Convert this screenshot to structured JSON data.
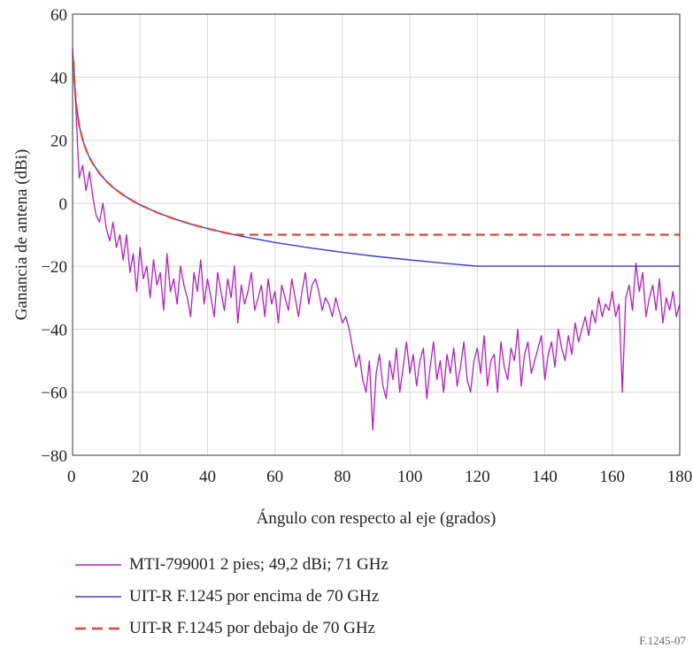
{
  "chart_data": {
    "type": "line",
    "title": "",
    "xlabel": "Ángulo con respecto al eje (grados)",
    "ylabel": "Ganancia de antena (dBi)",
    "xlim": [
      0,
      180
    ],
    "ylim": [
      -80,
      60
    ],
    "xticks": [
      0,
      20,
      40,
      60,
      80,
      100,
      120,
      140,
      160,
      180
    ],
    "yticks": [
      -80,
      -60,
      -40,
      -20,
      0,
      20,
      40,
      60
    ],
    "ytick_labels": [
      "−80",
      "−60",
      "−40",
      "−20",
      "0",
      "20",
      "40",
      "60"
    ],
    "grid": true,
    "legend_position": "bottom",
    "series": [
      {
        "name": "MTI-799001 2 pies; 49,2 dBi; 71 GHz",
        "color": "#b01fbf",
        "style": "solid",
        "x": [
          0,
          0.5,
          1,
          1.5,
          2,
          3,
          4,
          5,
          6,
          7,
          8,
          9,
          10,
          11,
          12,
          13,
          14,
          15,
          16,
          17,
          18,
          19,
          20,
          21,
          22,
          23,
          24,
          25,
          26,
          27,
          28,
          29,
          30,
          31,
          32,
          33,
          34,
          35,
          36,
          37,
          38,
          39,
          40,
          41,
          42,
          43,
          44,
          45,
          46,
          47,
          48,
          49,
          50,
          51,
          52,
          53,
          54,
          55,
          56,
          57,
          58,
          59,
          60,
          61,
          62,
          63,
          64,
          65,
          66,
          67,
          68,
          69,
          70,
          71,
          72,
          73,
          74,
          75,
          76,
          77,
          78,
          79,
          80,
          81,
          82,
          83,
          84,
          85,
          86,
          87,
          88,
          89,
          90,
          91,
          92,
          93,
          94,
          95,
          96,
          97,
          98,
          99,
          100,
          101,
          102,
          103,
          104,
          105,
          106,
          107,
          108,
          109,
          110,
          111,
          112,
          113,
          114,
          115,
          116,
          117,
          118,
          119,
          120,
          121,
          122,
          123,
          124,
          125,
          126,
          127,
          128,
          129,
          130,
          131,
          132,
          133,
          134,
          135,
          136,
          137,
          138,
          139,
          140,
          141,
          142,
          143,
          144,
          145,
          146,
          147,
          148,
          149,
          150,
          151,
          152,
          153,
          154,
          155,
          156,
          157,
          158,
          159,
          160,
          161,
          162,
          163,
          164,
          165,
          166,
          167,
          168,
          169,
          170,
          171,
          172,
          173,
          174,
          175,
          176,
          177,
          178,
          179,
          180
        ],
        "y": [
          49,
          40,
          30,
          18,
          8,
          12,
          4,
          10,
          2,
          -4,
          -6,
          0,
          -8,
          -12,
          -6,
          -14,
          -10,
          -18,
          -10,
          -22,
          -16,
          -28,
          -14,
          -24,
          -20,
          -30,
          -18,
          -26,
          -22,
          -34,
          -16,
          -28,
          -24,
          -32,
          -20,
          -26,
          -30,
          -36,
          -22,
          -28,
          -18,
          -32,
          -24,
          -30,
          -36,
          -22,
          -28,
          -34,
          -24,
          -30,
          -20,
          -38,
          -26,
          -32,
          -28,
          -22,
          -34,
          -30,
          -26,
          -36,
          -24,
          -32,
          -28,
          -38,
          -26,
          -30,
          -34,
          -24,
          -30,
          -36,
          -28,
          -22,
          -32,
          -26,
          -24,
          -28,
          -34,
          -30,
          -32,
          -36,
          -30,
          -34,
          -38,
          -36,
          -40,
          -46,
          -52,
          -48,
          -56,
          -60,
          -50,
          -72,
          -54,
          -48,
          -58,
          -62,
          -50,
          -56,
          -46,
          -60,
          -52,
          -44,
          -54,
          -48,
          -58,
          -50,
          -46,
          -62,
          -52,
          -44,
          -56,
          -50,
          -60,
          -48,
          -54,
          -46,
          -58,
          -52,
          -44,
          -56,
          -60,
          -50,
          -46,
          -54,
          -42,
          -58,
          -50,
          -48,
          -60,
          -44,
          -52,
          -56,
          -46,
          -50,
          -40,
          -58,
          -48,
          -44,
          -54,
          -50,
          -46,
          -42,
          -56,
          -48,
          -44,
          -52,
          -40,
          -46,
          -50,
          -42,
          -48,
          -38,
          -44,
          -40,
          -36,
          -42,
          -34,
          -38,
          -30,
          -36,
          -32,
          -34,
          -28,
          -36,
          -32,
          -60,
          -30,
          -26,
          -34,
          -19,
          -28,
          -22,
          -36,
          -30,
          -26,
          -34,
          -24,
          -38,
          -30,
          -34,
          -28,
          -36,
          -32
        ]
      },
      {
        "name": "UIT-R F.1245 por encima de 70 GHz",
        "color": "#3a3acf",
        "style": "solid",
        "x": [
          0.3,
          0.5,
          1,
          2,
          3,
          4,
          5,
          6,
          8,
          10,
          12,
          15,
          18,
          20,
          25,
          30,
          35,
          40,
          45,
          48,
          50,
          60,
          70,
          80,
          90,
          100,
          110,
          120,
          140,
          160,
          180
        ],
        "y": [
          45.07,
          39.53,
          32,
          24.47,
          20.07,
          16.95,
          14.53,
          12.55,
          9.42,
          7,
          5.02,
          2.6,
          0.62,
          -0.53,
          -2.95,
          -4.93,
          -6.6,
          -8.05,
          -9.33,
          -10.03,
          -10.48,
          -12.46,
          -14.13,
          -15.58,
          -16.86,
          -18,
          -19.04,
          -19.99,
          -19.99,
          -19.99,
          -19.99
        ]
      },
      {
        "name": "UIT-R F.1245 por debajo de 70 GHz",
        "color": "#e0443a",
        "style": "dashed",
        "x": [
          0.3,
          0.5,
          1,
          2,
          3,
          4,
          5,
          6,
          8,
          10,
          12,
          15,
          18,
          20,
          25,
          30,
          35,
          40,
          45,
          48,
          50,
          60,
          80,
          100,
          120,
          140,
          160,
          180
        ],
        "y": [
          45.07,
          39.53,
          32,
          24.47,
          20.07,
          16.95,
          14.53,
          12.55,
          9.42,
          7,
          5.02,
          2.6,
          0.62,
          -0.53,
          -2.95,
          -4.93,
          -6.6,
          -8.05,
          -9.33,
          -10,
          -10,
          -10,
          -10,
          -10,
          -10,
          -10,
          -10,
          -10
        ]
      }
    ]
  },
  "figure_id": "F.1245-07"
}
